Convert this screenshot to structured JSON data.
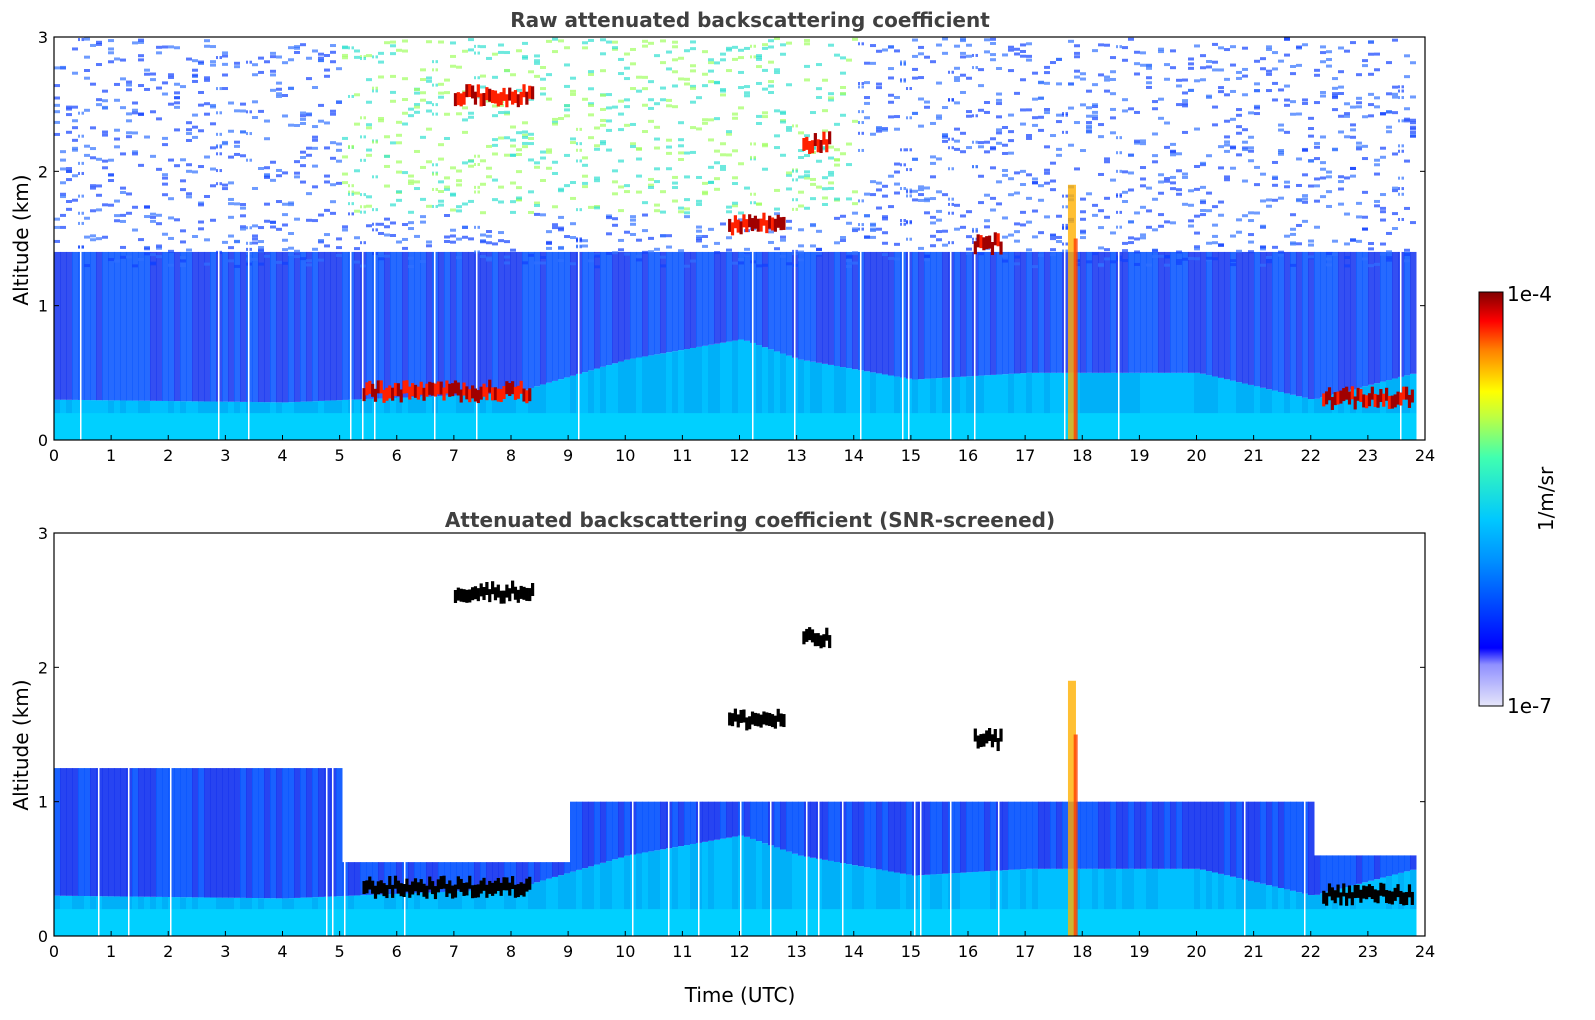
{
  "chart_data": [
    {
      "type": "heatmap",
      "title": "Raw attenuated backscattering coefficient",
      "xlabel": "",
      "ylabel": "Altitude (km)",
      "xlim": [
        0,
        24
      ],
      "ylim": [
        0,
        3
      ],
      "x_ticks": [
        "0",
        "1",
        "2",
        "3",
        "4",
        "5",
        "6",
        "7",
        "8",
        "9",
        "10",
        "11",
        "12",
        "13",
        "14",
        "15",
        "16",
        "17",
        "18",
        "19",
        "20",
        "21",
        "22",
        "23",
        "24"
      ],
      "y_ticks": [
        "0",
        "1",
        "2",
        "3"
      ],
      "grid": false,
      "features": {
        "boundary_layer_top_km": [
          {
            "time": 0,
            "alt": 0.3
          },
          {
            "time": 4,
            "alt": 0.28
          },
          {
            "time": 8,
            "alt": 0.35
          },
          {
            "time": 10,
            "alt": 0.6
          },
          {
            "time": 12,
            "alt": 0.75
          },
          {
            "time": 13,
            "alt": 0.6
          },
          {
            "time": 15,
            "alt": 0.45
          },
          {
            "time": 17,
            "alt": 0.5
          },
          {
            "time": 20,
            "alt": 0.5
          },
          {
            "time": 22,
            "alt": 0.3
          },
          {
            "time": 23.8,
            "alt": 0.5
          }
        ],
        "strong_layers": [
          {
            "t0": 5.4,
            "t1": 8.3,
            "alt": 0.35
          },
          {
            "t0": 7.0,
            "t1": 8.4,
            "alt": 2.55
          },
          {
            "t0": 11.8,
            "t1": 12.8,
            "alt": 1.6
          },
          {
            "t0": 13.1,
            "t1": 13.6,
            "alt": 2.2
          },
          {
            "t0": 16.1,
            "t1": 16.6,
            "alt": 1.45
          },
          {
            "t0": 22.2,
            "t1": 23.8,
            "alt": 0.3
          }
        ]
      }
    },
    {
      "type": "heatmap",
      "title": "Attenuated backscattering coefficient (SNR-screened)",
      "xlabel": "Time (UTC)",
      "ylabel": "Altitude (km)",
      "xlim": [
        0,
        24
      ],
      "ylim": [
        0,
        3
      ],
      "x_ticks": [
        "0",
        "1",
        "2",
        "3",
        "4",
        "5",
        "6",
        "7",
        "8",
        "9",
        "10",
        "11",
        "12",
        "13",
        "14",
        "15",
        "16",
        "17",
        "18",
        "19",
        "20",
        "21",
        "22",
        "23",
        "24"
      ],
      "y_ticks": [
        "0",
        "1",
        "2",
        "3"
      ],
      "grid": false
    }
  ],
  "colorbar": {
    "max_label": "1e-4",
    "min_label": "1e-7",
    "label": "1/m/sr",
    "scale": "log",
    "colors": [
      "#e6e6fa",
      "#0000ff",
      "#00c0ff",
      "#00ffb0",
      "#ffff00",
      "#ff8000",
      "#ff0000",
      "#800000"
    ]
  }
}
